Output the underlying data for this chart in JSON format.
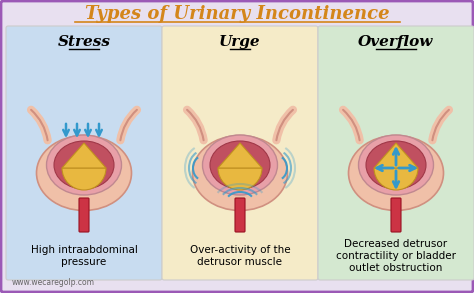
{
  "title": "Types of Urinary Incontinence",
  "title_color": "#D4861A",
  "title_fontsize": 13,
  "bg_outer": "#E8E0F0",
  "bg_border": "#9B59B6",
  "panel_colors": [
    "#C8DCF0",
    "#F5EBC8",
    "#D4E8D0"
  ],
  "panel_titles": [
    "Stress",
    "Urge",
    "Overflow"
  ],
  "panel_title_fontsize": 11,
  "panel_descs": [
    "High intraabdominal\npressure",
    "Over-activity of the\ndetrusor muscle",
    "Decreased detrusor\ncontractility or bladder\noutlet obstruction"
  ],
  "desc_fontsize": 7.5,
  "watermark": "www.wecaregolp.com",
  "arrow_color": "#3399CC",
  "bladder_outer": "#E8A0A8",
  "bladder_inner": "#C05060",
  "urine_color": "#E8B840",
  "tube_color": "#CC3344",
  "tissue_color": "#F0C0A8"
}
